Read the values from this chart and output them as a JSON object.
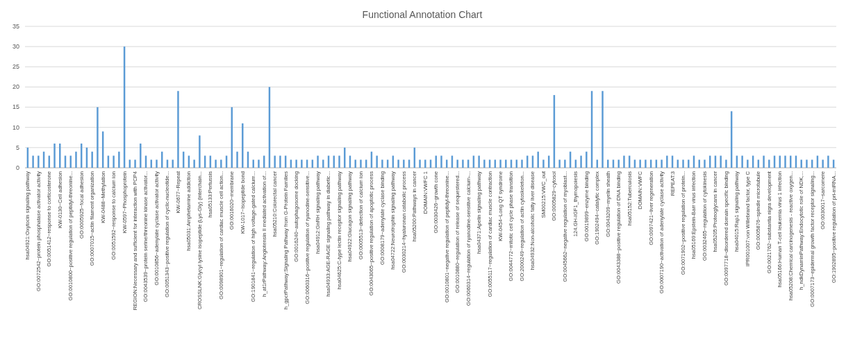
{
  "chart_data": {
    "type": "bar",
    "title": "Functional Annotation Chart",
    "categories": [
      "hsa04921:Oxytocin signaling pathway",
      null,
      "GO:0072542~protein phosphatase activator activity",
      null,
      "GO:0051412~response to corticosterone",
      null,
      "KW-0130~Cell adhesion",
      null,
      "GO:0010800~positive regulation of peptidyl-threonine...",
      null,
      "GO:0005925~focal adhesion",
      null,
      "GO:0007015~actin filament organization",
      null,
      "KW-0488~Methylation",
      null,
      "GO:0051592~response to calcium ion",
      null,
      "KW-0597~Phosphoprotein",
      null,
      "REGION:Necessary and sufficient for interaction with PCP4",
      null,
      "GO:0043539~protein serine/threonine kinase activator...",
      null,
      "GO:0010856~adenylate cyclase activator activity",
      null,
      "GO:0051343~positive regulation of cyclic-nucleotide...",
      null,
      "KW-0677~Repeat",
      null,
      "hsa05031:Amphetamine addiction",
      null,
      "CROSSLNK:Glycyl lysine isopeptide (Lys-Gly) (interchain...",
      null,
      "hsa05133:Pertussis",
      null,
      "GO:0098901~regulation of cardiac muscle cell action...",
      null,
      "GO:0016020~membrane",
      null,
      "KW-1017~Isopeptide bond",
      null,
      "GO:1901841~regulation of high voltage-gated calcium...",
      null,
      "h_at1rPathway:Angiotensin II mediated activation of...",
      null,
      "hsa05210:Colorectal cancer",
      null,
      "h_gpcrPathway:Signaling Pathway from G-Protein Families",
      null,
      "GO:0016240~autophagosome docking",
      null,
      "GO:0060316~positive regulation of ryanodine-sensitive...",
      null,
      "hsa04912:GnRH signaling pathway",
      null,
      "hsa04933:AGE-RAGE signaling pathway in diabetic...",
      null,
      "hsa04625:C-type lectin receptor signaling pathway",
      null,
      "hsa04922:Glucagon signaling pathway",
      null,
      "GO:0005513~detection of calcium ion",
      null,
      "GO:0043065~positive regulation of apoptotic process",
      null,
      "GO:0008179~adenylate cyclase binding",
      null,
      "hsa04722:Neurotrophin signaling pathway",
      null,
      "GO:0030214~hyaluronan catabolic process",
      null,
      "hsa05200:Pathways in cancer",
      null,
      "DOMAIN:VWFC 1",
      null,
      "GO:0030426~growth cone",
      null,
      "GO:0010801~negative regulation of peptidyl-threonine...",
      null,
      "GO:0010880~regulation of release of sequestered...",
      null,
      "GO:0060314~regulation of ryanodine-sensitive calcium-...",
      null,
      "hsa04371:Apelin signaling pathway",
      null,
      "GO:0055117~regulation of cardiac muscle contraction",
      null,
      "KW-0454~Long QT syndrome",
      null,
      "GO:0044772~mitotic cell cycle phase transition",
      null,
      "GO:2000249~regulation of actin cytoskeleton...",
      null,
      "hsa04932:Non-alcoholic fatty liver disease",
      null,
      "SM00215:VWC_out",
      null,
      "GO:0005829~cytosol",
      null,
      "GO:0045662~negative regulation of myoblast...",
      null,
      "124.GH-IGF1_thymopoiesis",
      null,
      "GO:0019899~enzyme binding",
      null,
      "GO:1902494~catalytic complex",
      null,
      "GO:0043209~myelin sheath",
      null,
      "GO:0043388~positive regulation of DNA binding",
      null,
      "hsa05152:Tuberculosis",
      null,
      "DOMAIN:VWFC",
      null,
      "GO:0097421~liver regeneration",
      null,
      "GO:0007190~activation of adenylate cyclase activity",
      null,
      "REPEAT:3",
      null,
      "GO:0071902~positive regulation of protein...",
      null,
      "hsa05169:Epstein-Barr virus infection",
      null,
      "GO:0032465~regulation of cytokinesis",
      null,
      "hsa05205:Proteoglycans in cancer",
      null,
      "GO:0097718~disordered domain specific binding",
      null,
      "hsa04015:Rap1 signaling pathway",
      null,
      "IPR001007:von Willebrand factor, type C",
      null,
      "GO:0005876~spindle microtubule",
      null,
      "GO:0021762~substantia nigra development",
      null,
      "hsa05166:Human T-cell leukemia virus 1 infection",
      null,
      "hsa05208:Chemical carcinogenesis - reactive oxygen...",
      null,
      "h_ndkDynaminPathway:Endocytotic role of NDK,...",
      null,
      "GO:0007173~epidermal growth factor receptor signaling...",
      null,
      "GO:0030017~sarcomere",
      null,
      "GO:1902895~positive regulation of pri-miRNA..."
    ],
    "values": [
      5,
      3,
      3,
      4,
      3,
      6,
      6,
      3,
      3,
      4,
      6,
      5,
      4,
      15,
      9,
      3,
      3,
      4,
      30,
      2,
      2,
      6,
      3,
      2,
      2,
      4,
      2,
      2,
      19,
      4,
      3,
      2,
      8,
      3,
      3,
      2,
      2,
      3,
      15,
      4,
      11,
      4,
      2,
      2,
      3,
      20,
      3,
      3,
      3,
      2,
      2,
      2,
      2,
      2,
      3,
      2,
      3,
      3,
      3,
      5,
      3,
      2,
      2,
      2,
      4,
      3,
      2,
      2,
      3,
      2,
      2,
      2,
      5,
      2,
      2,
      2,
      3,
      3,
      2,
      3,
      2,
      2,
      2,
      3,
      3,
      2,
      2,
      2,
      2,
      2,
      2,
      2,
      2,
      3,
      3,
      4,
      2,
      3,
      18,
      2,
      2,
      4,
      2,
      3,
      4,
      19,
      2,
      19,
      2,
      2,
      2,
      3,
      3,
      2,
      2,
      2,
      2,
      2,
      2,
      3,
      3,
      2,
      2,
      2,
      3,
      2,
      2,
      3,
      3,
      3,
      2,
      14,
      3,
      3,
      2,
      3,
      2,
      3,
      2,
      3,
      3,
      3,
      3,
      3,
      2,
      2,
      2,
      3,
      2,
      3,
      2
    ],
    "color": "#5b9bd5",
    "ylim": [
      0,
      35
    ],
    "yticks": [
      0,
      5,
      10,
      15,
      20,
      25,
      30,
      35
    ],
    "grid": "y"
  }
}
